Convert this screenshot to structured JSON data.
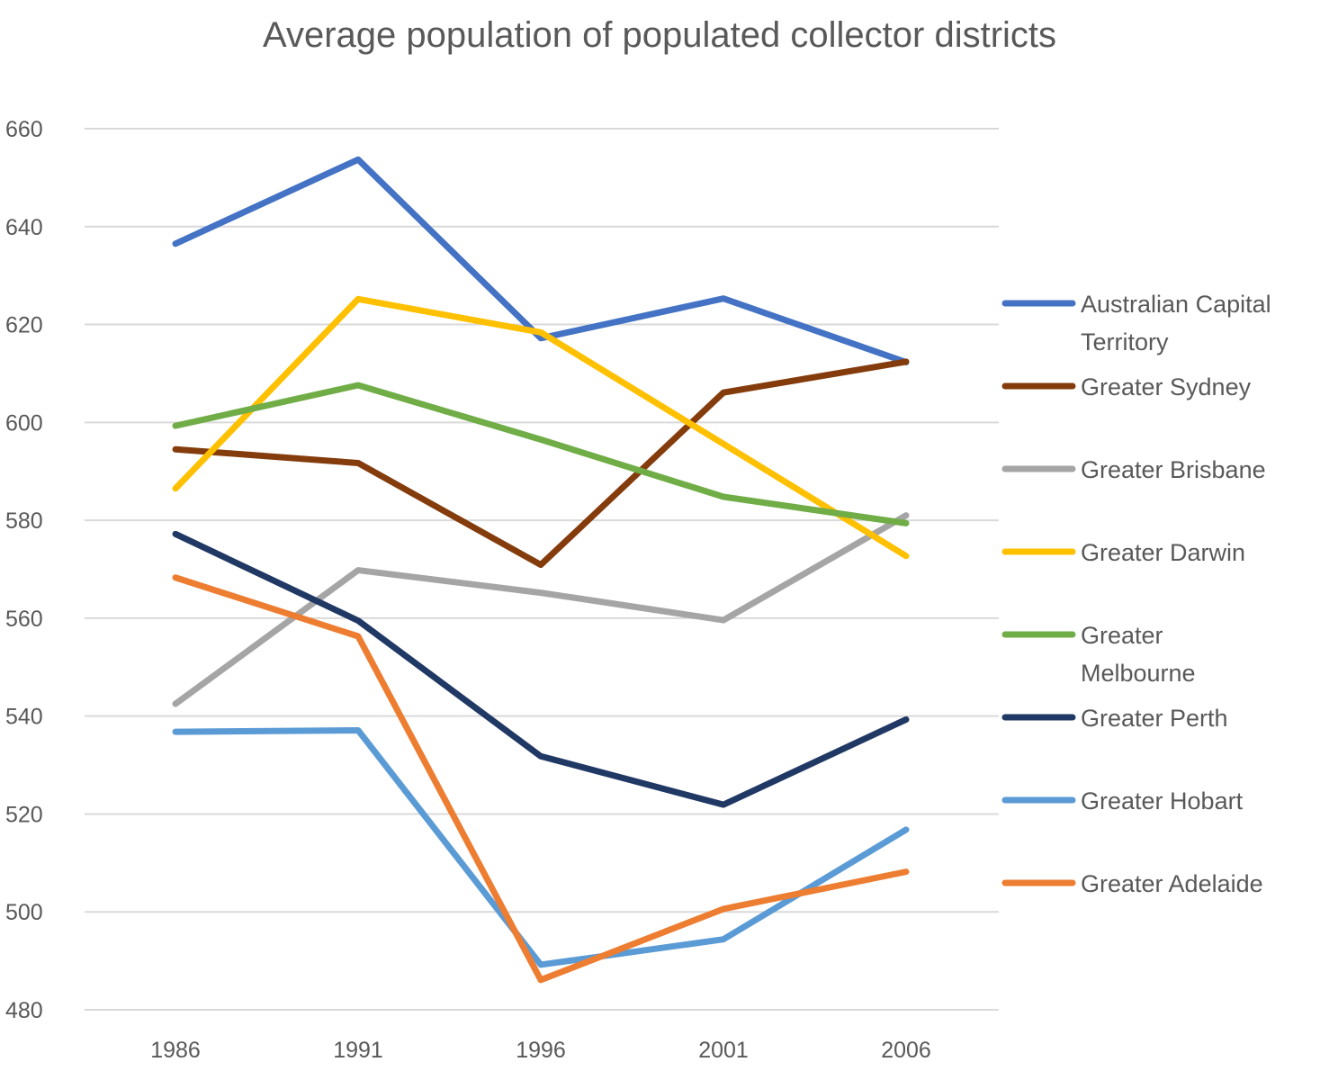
{
  "chart_data": {
    "type": "line",
    "title": "Average population of populated collector districts",
    "xlabel": "",
    "ylabel": "",
    "x": [
      "1986",
      "1991",
      "1996",
      "2001",
      "2006"
    ],
    "ylim": [
      480,
      660
    ],
    "yticks": [
      480,
      500,
      520,
      540,
      560,
      580,
      600,
      620,
      640,
      660
    ],
    "grid": true,
    "legend_position": "right",
    "series": [
      {
        "name": "Australian Capital Territory",
        "legend_lines": [
          "Australian Capital",
          "Territory"
        ],
        "color": "#4472C4",
        "values": [
          636.5,
          653.7,
          617.2,
          625.3,
          612.3
        ]
      },
      {
        "name": "Greater Sydney",
        "legend_lines": [
          "Greater Sydney"
        ],
        "color": "#843C0C",
        "values": [
          594.5,
          591.7,
          570.9,
          606.1,
          612.4
        ]
      },
      {
        "name": "Greater Brisbane",
        "legend_lines": [
          "Greater Brisbane"
        ],
        "color": "#A5A5A5",
        "values": [
          542.5,
          569.8,
          565.2,
          559.6,
          581.0
        ]
      },
      {
        "name": "Greater Darwin",
        "legend_lines": [
          "Greater Darwin"
        ],
        "color": "#FFC000",
        "values": [
          586.5,
          625.2,
          618.4,
          595.6,
          572.7
        ]
      },
      {
        "name": "Greater Melbourne",
        "legend_lines": [
          "Greater",
          "Melbourne"
        ],
        "color": "#70AD47",
        "values": [
          599.3,
          607.6,
          596.5,
          584.8,
          579.4
        ]
      },
      {
        "name": "Greater Perth",
        "legend_lines": [
          "Greater Perth"
        ],
        "color": "#203864",
        "values": [
          577.2,
          559.5,
          531.8,
          521.9,
          539.3
        ]
      },
      {
        "name": "Greater Hobart",
        "legend_lines": [
          "Greater Hobart"
        ],
        "color": "#5B9BD5",
        "values": [
          536.8,
          537.1,
          489.2,
          494.4,
          516.8
        ]
      },
      {
        "name": "Greater Adelaide",
        "legend_lines": [
          "Greater Adelaide"
        ],
        "color": "#ED7D31",
        "values": [
          568.3,
          556.3,
          486.1,
          500.6,
          508.2
        ]
      }
    ]
  }
}
